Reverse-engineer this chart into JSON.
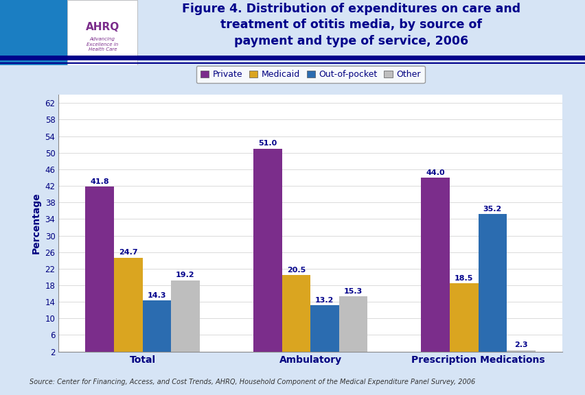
{
  "title": "Figure 4. Distribution of expenditures on care and\ntreatment of otitis media, by source of\npayment and type of service, 2006",
  "categories": [
    "Total",
    "Ambulatory",
    "Prescription Medications"
  ],
  "series": {
    "Private": [
      41.8,
      51.0,
      44.0
    ],
    "Medicaid": [
      24.7,
      20.5,
      18.5
    ],
    "Out-of-pocket": [
      14.3,
      13.2,
      35.2
    ],
    "Other": [
      19.2,
      15.3,
      2.3
    ]
  },
  "colors": {
    "Private": "#7B2D8B",
    "Medicaid": "#DAA520",
    "Out-of-pocket": "#2B6CB0",
    "Other": "#BEBEBE"
  },
  "ylabel": "Percentage",
  "yticks": [
    2,
    6,
    10,
    14,
    18,
    22,
    26,
    30,
    34,
    38,
    42,
    46,
    50,
    54,
    58,
    62
  ],
  "ylim": [
    2,
    64
  ],
  "source_text": "Source: Center for Financing, Access, and Cost Trends, AHRQ, Household Component of the Medical Expenditure Panel Survey, 2006",
  "background_color": "#D6E4F5",
  "header_bg": "#FFFFFF",
  "chart_bg": "#FFFFFF",
  "bar_width": 0.17,
  "border_color": "#00008B",
  "title_color": "#00008B",
  "axis_label_color": "#000080",
  "tick_label_color": "#000080",
  "value_label_color": "#00008B"
}
